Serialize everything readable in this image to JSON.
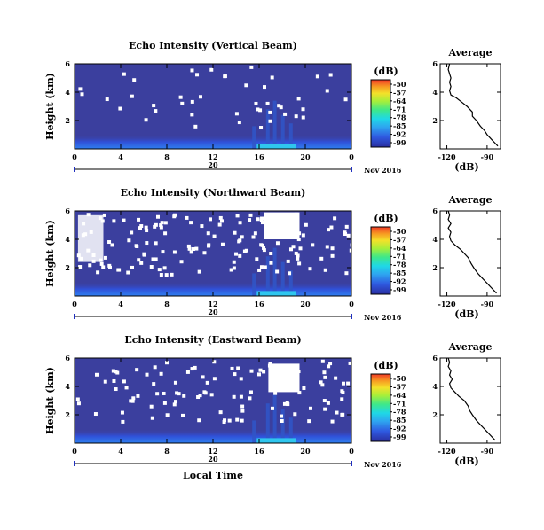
{
  "chart_data": [
    {
      "type": "heatmap",
      "title": "Echo Intensity (Vertical Beam)",
      "ylabel": "Height (km)",
      "x_ticks": [
        "0",
        "4",
        "8",
        "12",
        "16",
        "20",
        "0"
      ],
      "y_ticks": [
        "6",
        "4",
        "2"
      ],
      "x_range": [
        0,
        24
      ],
      "y_range": [
        0,
        6
      ],
      "date_label": "20",
      "month_label": "Nov 2016",
      "colorbar": {
        "unit": "(dB)",
        "ticks": [
          "-50",
          "-57",
          "-64",
          "-71",
          "-78",
          "-85",
          "-92",
          "-99"
        ]
      },
      "avg": {
        "title": "Average",
        "xlabel": "(dB)",
        "x_ticks": [
          "-120",
          "-90"
        ],
        "y_ticks": [
          "6",
          "4",
          "2"
        ],
        "x_range": [
          -125,
          -80
        ],
        "y_range": [
          0,
          6
        ],
        "profile": [
          {
            "h": 0.2,
            "db": -82
          },
          {
            "h": 0.4,
            "db": -84
          },
          {
            "h": 0.6,
            "db": -86
          },
          {
            "h": 0.8,
            "db": -88
          },
          {
            "h": 1.0,
            "db": -90
          },
          {
            "h": 1.3,
            "db": -92
          },
          {
            "h": 1.6,
            "db": -95
          },
          {
            "h": 2.0,
            "db": -98
          },
          {
            "h": 2.3,
            "db": -101
          },
          {
            "h": 2.6,
            "db": -101
          },
          {
            "h": 3.0,
            "db": -105
          },
          {
            "h": 3.3,
            "db": -109
          },
          {
            "h": 3.6,
            "db": -113
          },
          {
            "h": 3.8,
            "db": -117
          },
          {
            "h": 4.1,
            "db": -118
          },
          {
            "h": 4.4,
            "db": -117
          },
          {
            "h": 4.7,
            "db": -118
          },
          {
            "h": 5.0,
            "db": -117
          },
          {
            "h": 5.3,
            "db": -118
          },
          {
            "h": 5.6,
            "db": -119
          },
          {
            "h": 6.0,
            "db": -118
          }
        ]
      }
    },
    {
      "type": "heatmap",
      "title": "Echo Intensity (Northward Beam)",
      "ylabel": "Height (km)",
      "x_ticks": [
        "0",
        "4",
        "8",
        "12",
        "16",
        "20",
        "0"
      ],
      "y_ticks": [
        "6",
        "4",
        "2"
      ],
      "x_range": [
        0,
        24
      ],
      "y_range": [
        0,
        6
      ],
      "date_label": "20",
      "month_label": "Nov 2016",
      "colorbar": {
        "unit": "(dB)",
        "ticks": [
          "-50",
          "-57",
          "-64",
          "-71",
          "-78",
          "-85",
          "-92",
          "-99"
        ]
      },
      "avg": {
        "title": "Average",
        "xlabel": "(dB)",
        "x_ticks": [
          "-120",
          "-90"
        ],
        "y_ticks": [
          "6",
          "4",
          "2"
        ],
        "x_range": [
          -125,
          -80
        ],
        "y_range": [
          0,
          6
        ],
        "profile": [
          {
            "h": 0.2,
            "db": -83
          },
          {
            "h": 0.4,
            "db": -85
          },
          {
            "h": 0.6,
            "db": -87
          },
          {
            "h": 0.8,
            "db": -89
          },
          {
            "h": 1.0,
            "db": -91
          },
          {
            "h": 1.3,
            "db": -94
          },
          {
            "h": 1.6,
            "db": -97
          },
          {
            "h": 2.0,
            "db": -100
          },
          {
            "h": 2.3,
            "db": -102
          },
          {
            "h": 2.7,
            "db": -104
          },
          {
            "h": 3.0,
            "db": -107
          },
          {
            "h": 3.3,
            "db": -110
          },
          {
            "h": 3.6,
            "db": -114
          },
          {
            "h": 3.9,
            "db": -117
          },
          {
            "h": 4.2,
            "db": -118
          },
          {
            "h": 4.5,
            "db": -117
          },
          {
            "h": 4.8,
            "db": -119
          },
          {
            "h": 5.1,
            "db": -117
          },
          {
            "h": 5.4,
            "db": -119
          },
          {
            "h": 5.7,
            "db": -118
          },
          {
            "h": 6.0,
            "db": -119
          }
        ]
      }
    },
    {
      "type": "heatmap",
      "title": "Echo Intensity (Eastward Beam)",
      "ylabel": "Height (km)",
      "xlabel": "Local Time",
      "x_ticks": [
        "0",
        "4",
        "8",
        "12",
        "16",
        "20",
        "0"
      ],
      "y_ticks": [
        "6",
        "4",
        "2"
      ],
      "x_range": [
        0,
        24
      ],
      "y_range": [
        0,
        6
      ],
      "date_label": "20",
      "month_label": "Nov 2016",
      "colorbar": {
        "unit": "(dB)",
        "ticks": [
          "-50",
          "-57",
          "-64",
          "-71",
          "-78",
          "-85",
          "-92",
          "-99"
        ]
      },
      "avg": {
        "title": "Average",
        "xlabel": "(dB)",
        "x_ticks": [
          "-120",
          "-90"
        ],
        "y_ticks": [
          "6",
          "4",
          "2"
        ],
        "x_range": [
          -125,
          -80
        ],
        "y_range": [
          0,
          6
        ],
        "profile": [
          {
            "h": 0.2,
            "db": -84
          },
          {
            "h": 0.4,
            "db": -86
          },
          {
            "h": 0.6,
            "db": -88
          },
          {
            "h": 0.8,
            "db": -90
          },
          {
            "h": 1.0,
            "db": -92
          },
          {
            "h": 1.3,
            "db": -95
          },
          {
            "h": 1.6,
            "db": -98
          },
          {
            "h": 2.0,
            "db": -101
          },
          {
            "h": 2.3,
            "db": -103
          },
          {
            "h": 2.6,
            "db": -104
          },
          {
            "h": 3.0,
            "db": -107
          },
          {
            "h": 3.3,
            "db": -111
          },
          {
            "h": 3.6,
            "db": -114
          },
          {
            "h": 3.9,
            "db": -117
          },
          {
            "h": 4.2,
            "db": -118
          },
          {
            "h": 4.5,
            "db": -116
          },
          {
            "h": 4.8,
            "db": -118
          },
          {
            "h": 5.1,
            "db": -117
          },
          {
            "h": 5.4,
            "db": -119
          },
          {
            "h": 5.7,
            "db": -118
          },
          {
            "h": 6.0,
            "db": -119
          }
        ]
      }
    }
  ]
}
